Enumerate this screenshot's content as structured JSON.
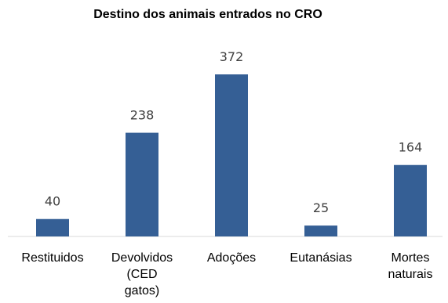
{
  "chart_data": {
    "type": "bar",
    "title": "Destino dos animais entrados no CRO",
    "categories": [
      [
        "Restituidos"
      ],
      [
        "Devolvidos",
        "(CED",
        "gatos)"
      ],
      [
        "Adoções"
      ],
      [
        "Eutanásias"
      ],
      [
        "Mortes",
        "naturais"
      ]
    ],
    "values": [
      40,
      238,
      372,
      25,
      164
    ],
    "data_labels": [
      "40",
      "238",
      "372",
      "25",
      "164"
    ],
    "color": "#355F95",
    "xlabel": "",
    "ylabel": "",
    "grid": false,
    "legend": "none"
  }
}
